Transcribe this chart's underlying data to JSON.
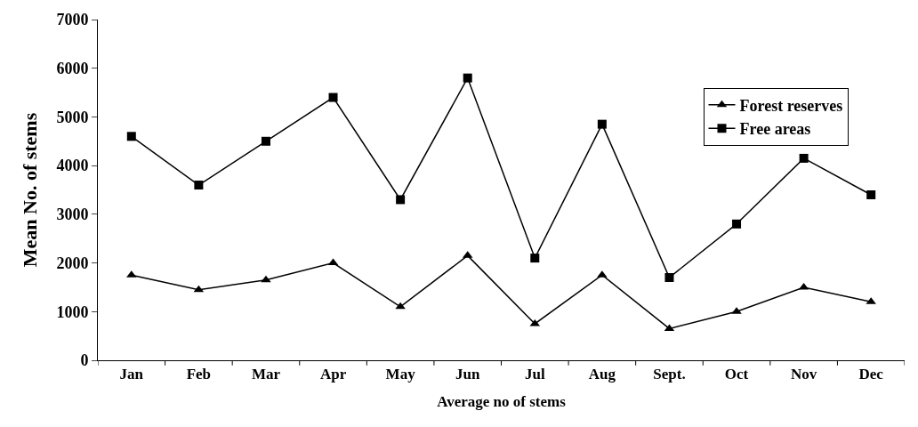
{
  "chart_data": {
    "type": "line",
    "xlabel": "Average no of stems",
    "ylabel": "Mean No. of stems",
    "categories": [
      "Jan",
      "Feb",
      "Mar",
      "Apr",
      "May",
      "Jun",
      "Jul",
      "Aug",
      "Sept.",
      "Oct",
      "Nov",
      "Dec"
    ],
    "series": [
      {
        "name": "Forest reserves",
        "color": "#000000",
        "marker": "triangle",
        "values": [
          1750,
          1450,
          1650,
          2000,
          1100,
          2150,
          750,
          1750,
          650,
          1000,
          1500,
          1200
        ]
      },
      {
        "name": "Free areas",
        "color": "#000000",
        "marker": "square",
        "values": [
          4600,
          3600,
          4500,
          5400,
          3300,
          5800,
          2100,
          4850,
          1700,
          2800,
          4150,
          3400
        ]
      }
    ],
    "ylim": [
      0,
      7000
    ],
    "yticks": [
      0,
      1000,
      2000,
      3000,
      4000,
      5000,
      6000,
      7000
    ],
    "legend": "top right",
    "line_style": "solid"
  }
}
